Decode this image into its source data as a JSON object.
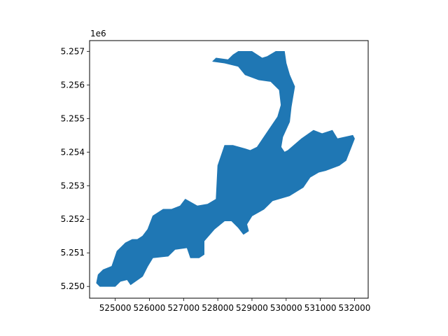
{
  "figure": {
    "offset_label": "1e6",
    "fill_color": "#1f77b4",
    "background": "#ffffff"
  },
  "chart_data": {
    "type": "area",
    "geometry": "polygon",
    "xlim": [
      524250,
      532400
    ],
    "ylim": [
      5249650,
      5257320
    ],
    "x_ticks": [
      525000,
      526000,
      527000,
      528000,
      529000,
      530000,
      531000,
      532000
    ],
    "x_tick_labels": [
      "525000",
      "526000",
      "527000",
      "528000",
      "529000",
      "530000",
      "531000",
      "532000"
    ],
    "y_ticks": [
      5250000,
      5251000,
      5252000,
      5253000,
      5254000,
      5255000,
      5256000,
      5257000
    ],
    "y_tick_labels": [
      "5.250",
      "5.251",
      "5.252",
      "5.253",
      "5.254",
      "5.255",
      "5.256",
      "5.257"
    ],
    "y_offset": "1e6",
    "grid": false,
    "polygon": [
      [
        524550,
        5250000
      ],
      [
        525000,
        5250000
      ],
      [
        525150,
        5250150
      ],
      [
        525350,
        5250200
      ],
      [
        525450,
        5250050
      ],
      [
        525800,
        5250300
      ],
      [
        525950,
        5250600
      ],
      [
        526100,
        5250850
      ],
      [
        526550,
        5250900
      ],
      [
        526750,
        5251100
      ],
      [
        527100,
        5251150
      ],
      [
        527200,
        5250850
      ],
      [
        527450,
        5250850
      ],
      [
        527600,
        5250950
      ],
      [
        527600,
        5251350
      ],
      [
        527900,
        5251700
      ],
      [
        528200,
        5251950
      ],
      [
        528400,
        5251950
      ],
      [
        528600,
        5251750
      ],
      [
        528750,
        5251550
      ],
      [
        528900,
        5251650
      ],
      [
        528850,
        5251850
      ],
      [
        529000,
        5252100
      ],
      [
        529350,
        5252300
      ],
      [
        529600,
        5252550
      ],
      [
        530100,
        5252700
      ],
      [
        530500,
        5252950
      ],
      [
        530700,
        5253250
      ],
      [
        530950,
        5253400
      ],
      [
        531150,
        5253450
      ],
      [
        531550,
        5253600
      ],
      [
        531750,
        5253750
      ],
      [
        532000,
        5254400
      ],
      [
        531950,
        5254500
      ],
      [
        531500,
        5254400
      ],
      [
        531350,
        5254650
      ],
      [
        531050,
        5254550
      ],
      [
        530800,
        5254650
      ],
      [
        530450,
        5254400
      ],
      [
        530050,
        5254050
      ],
      [
        529950,
        5254000
      ],
      [
        529850,
        5254150
      ],
      [
        529900,
        5254450
      ],
      [
        530100,
        5254900
      ],
      [
        530150,
        5255350
      ],
      [
        530250,
        5255950
      ],
      [
        530100,
        5256300
      ],
      [
        530000,
        5256650
      ],
      [
        529950,
        5257000
      ],
      [
        529700,
        5257000
      ],
      [
        529450,
        5256850
      ],
      [
        529300,
        5256800
      ],
      [
        529000,
        5257000
      ],
      [
        528600,
        5257000
      ],
      [
        528450,
        5256900
      ],
      [
        528300,
        5256750
      ],
      [
        527950,
        5256800
      ],
      [
        527850,
        5256700
      ],
      [
        528200,
        5256650
      ],
      [
        528600,
        5256550
      ],
      [
        528800,
        5256300
      ],
      [
        529200,
        5256150
      ],
      [
        529550,
        5256100
      ],
      [
        529800,
        5255850
      ],
      [
        529850,
        5255400
      ],
      [
        529750,
        5255050
      ],
      [
        529450,
        5254600
      ],
      [
        529150,
        5254150
      ],
      [
        528950,
        5254050
      ],
      [
        528800,
        5254100
      ],
      [
        528450,
        5254200
      ],
      [
        528200,
        5254200
      ],
      [
        528000,
        5253600
      ],
      [
        527950,
        5252600
      ],
      [
        527700,
        5252450
      ],
      [
        527400,
        5252400
      ],
      [
        527050,
        5252600
      ],
      [
        526900,
        5252400
      ],
      [
        526650,
        5252300
      ],
      [
        526400,
        5252300
      ],
      [
        526100,
        5252100
      ],
      [
        525950,
        5251700
      ],
      [
        525800,
        5251500
      ],
      [
        525650,
        5251400
      ],
      [
        525500,
        5251400
      ],
      [
        525300,
        5251300
      ],
      [
        525200,
        5251200
      ],
      [
        525050,
        5251050
      ],
      [
        524900,
        5250600
      ],
      [
        524650,
        5250500
      ],
      [
        524500,
        5250350
      ],
      [
        524450,
        5250100
      ]
    ]
  }
}
